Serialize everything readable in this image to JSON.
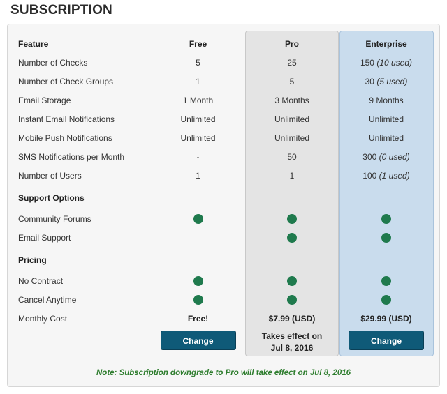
{
  "page": {
    "title": "SUBSCRIPTION"
  },
  "headers": {
    "feature": "Feature",
    "free": "Free",
    "pro": "Pro",
    "enterprise": "Enterprise"
  },
  "rows": [
    {
      "label": "Number of Checks",
      "free": "5",
      "pro": "25",
      "ent_value": "150",
      "ent_note": "(10 used)"
    },
    {
      "label": "Number of Check Groups",
      "free": "1",
      "pro": "5",
      "ent_value": "30",
      "ent_note": "(5 used)"
    },
    {
      "label": "Email Storage",
      "free": "1 Month",
      "pro": "3 Months",
      "ent_value": "9 Months",
      "ent_note": ""
    },
    {
      "label": "Instant Email Notifications",
      "free": "Unlimited",
      "pro": "Unlimited",
      "ent_value": "Unlimited",
      "ent_note": ""
    },
    {
      "label": "Mobile Push Notifications",
      "free": "Unlimited",
      "pro": "Unlimited",
      "ent_value": "Unlimited",
      "ent_note": ""
    },
    {
      "label": "SMS Notifications per Month",
      "free": "-",
      "pro": "50",
      "ent_value": "300",
      "ent_note": "(0 used)"
    },
    {
      "label": "Number of Users",
      "free": "1",
      "pro": "1",
      "ent_value": "100",
      "ent_note": "(1 used)"
    }
  ],
  "support": {
    "section_label": "Support Options",
    "items": [
      {
        "label": "Community Forums",
        "free": true,
        "pro": true,
        "enterprise": true
      },
      {
        "label": "Email Support",
        "free": false,
        "pro": true,
        "enterprise": true
      }
    ]
  },
  "pricing": {
    "section_label": "Pricing",
    "items": [
      {
        "label": "No Contract",
        "free": true,
        "pro": true,
        "enterprise": true
      },
      {
        "label": "Cancel Anytime",
        "free": true,
        "pro": true,
        "enterprise": true
      }
    ],
    "monthly_cost": {
      "label": "Monthly Cost",
      "free": "Free!",
      "pro": "$7.99 (USD)",
      "enterprise": "$29.99 (USD)"
    }
  },
  "actions": {
    "free_button": "Change",
    "pro_effect_line1": "Takes effect on",
    "pro_effect_line2": "Jul 8, 2016",
    "enterprise_button": "Change"
  },
  "note": "Note: Subscription downgrade to Pro will take effect on Jul 8, 2016",
  "colors": {
    "included_dot": "#1f7a4d",
    "button_bg": "#0f5a78",
    "pro_column_bg": "#e4e4e4",
    "enterprise_column_bg": "#c9dced",
    "note_text": "#2e7d2e"
  },
  "icons": {
    "included": "filled-circle-icon"
  }
}
